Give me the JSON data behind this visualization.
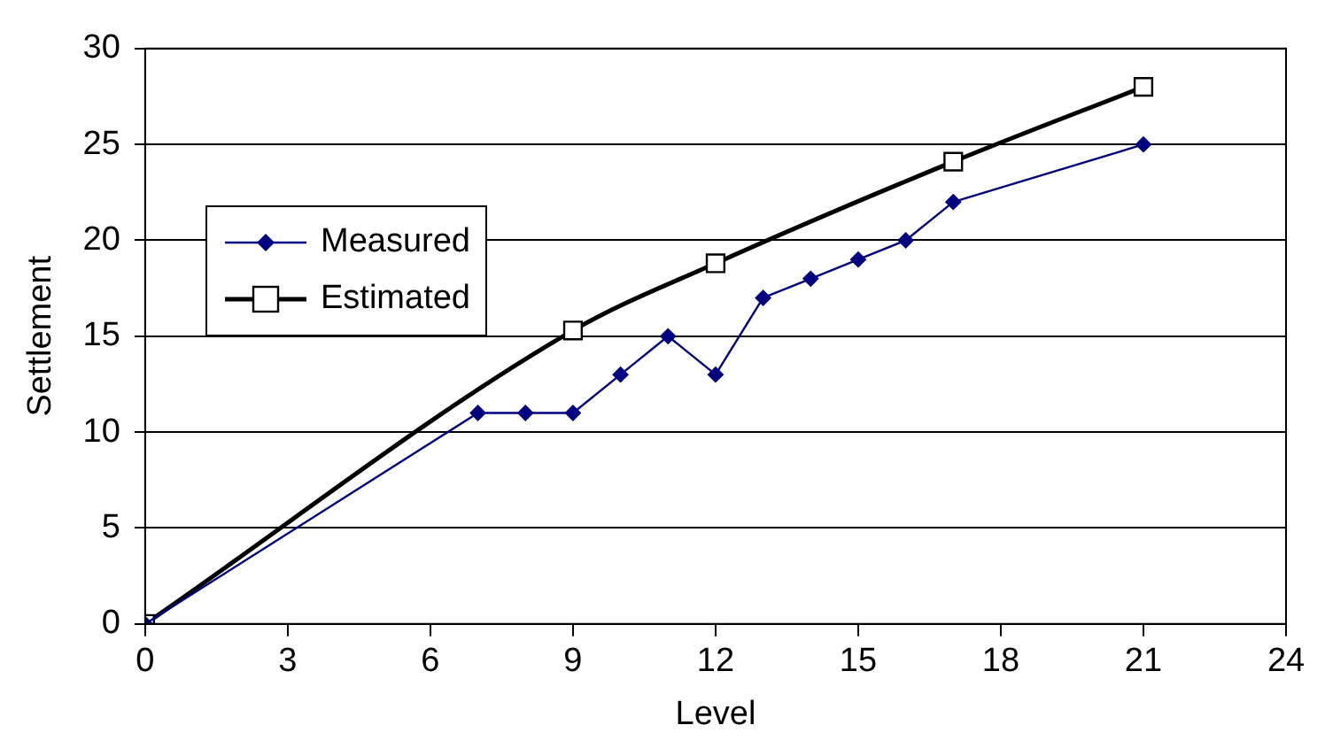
{
  "chart_data": {
    "type": "line",
    "xlabel": "Level",
    "ylabel": "Settlement",
    "xlim": [
      0,
      24
    ],
    "xticks": [
      0,
      3,
      6,
      9,
      12,
      15,
      18,
      21,
      24
    ],
    "ylim": [
      0,
      30
    ],
    "yticks": [
      0,
      5,
      10,
      15,
      20,
      25,
      30
    ],
    "grid": "y",
    "legend": "left",
    "series": [
      {
        "name": "Measured",
        "color": "#000080",
        "marker": "diamond",
        "x": [
          0,
          7,
          8,
          9,
          10,
          11,
          12,
          13,
          14,
          15,
          16,
          17,
          21
        ],
        "values": [
          0,
          11,
          11,
          11,
          13,
          15,
          13,
          17,
          18,
          19,
          20,
          22,
          25
        ]
      },
      {
        "name": "Estimated",
        "color": "#000000",
        "marker": "square",
        "x": [
          0,
          9,
          12,
          17,
          21
        ],
        "values": [
          0,
          15.3,
          18.8,
          24.1,
          28
        ]
      }
    ]
  }
}
